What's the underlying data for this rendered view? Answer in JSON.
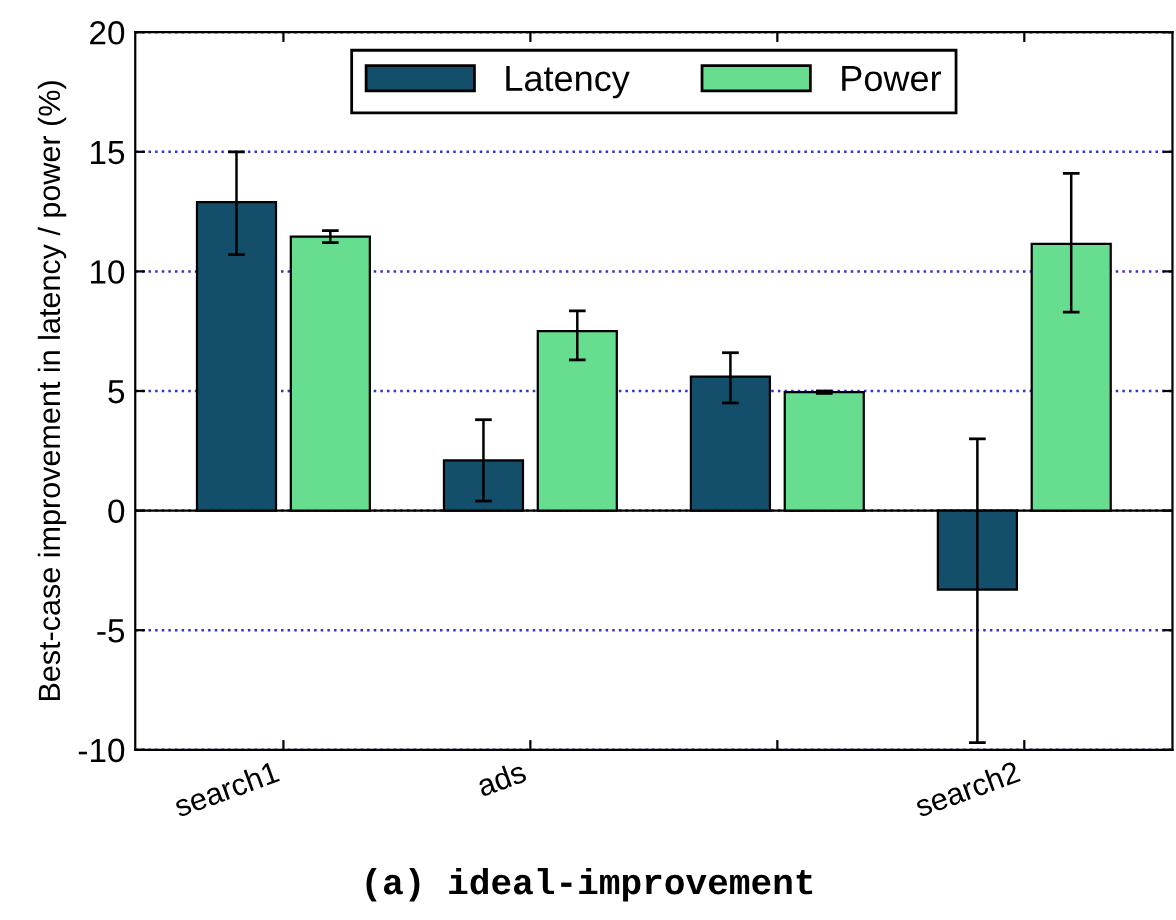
{
  "chart_data": {
    "type": "bar",
    "categories": [
      "search1",
      "ads",
      null,
      "search2"
    ],
    "ylabel": "Best-case improvement in latency / power (%)",
    "series": [
      {
        "name": "Latency",
        "color": "#134e6a",
        "values": [
          12.9,
          2.1,
          5.6,
          -3.3
        ],
        "errors": [
          [
            10.7,
            15.0
          ],
          [
            0.4,
            3.8
          ],
          [
            4.5,
            6.6
          ],
          [
            -9.7,
            3.0
          ]
        ]
      },
      {
        "name": "Power",
        "color": "#66dd8f",
        "values": [
          11.45,
          7.5,
          4.95,
          11.15
        ],
        "errors": [
          [
            11.2,
            11.7
          ],
          [
            6.3,
            8.35
          ],
          [
            4.9,
            5.0
          ],
          [
            8.3,
            14.1
          ]
        ]
      }
    ],
    "ylim": [
      -10,
      20
    ],
    "yticks": [
      -10,
      -5,
      0,
      5,
      10,
      15,
      20
    ],
    "grid": "y",
    "legend": "top",
    "annotations": [
      "(a) ideal-improvement"
    ]
  }
}
